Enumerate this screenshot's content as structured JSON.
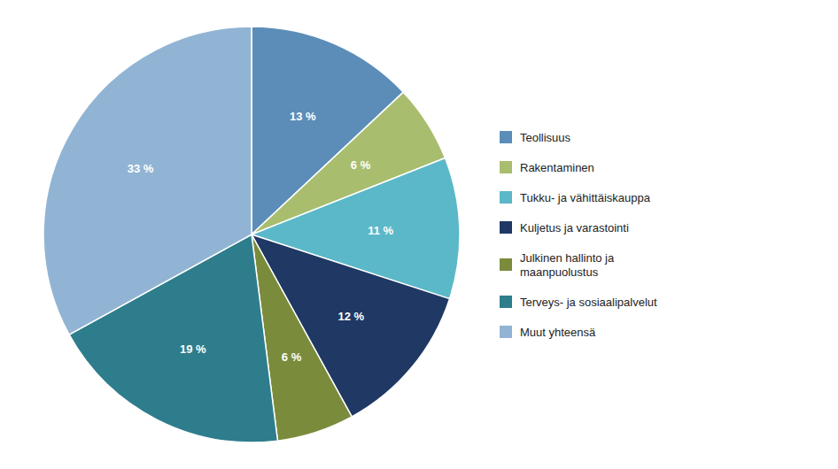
{
  "chart_data": {
    "type": "pie",
    "categories": [
      "Teollisuus",
      "Rakentaminen",
      "Tukku- ja vähittäiskauppa",
      "Kuljetus ja varastointi",
      "Julkinen hallinto ja\nmaanpuolustus",
      "Terveys- ja sosiaalipalvelut",
      "Muut yhteensä"
    ],
    "values": [
      13,
      6,
      11,
      12,
      6,
      19,
      33
    ],
    "value_labels": [
      "13 %",
      "6 %",
      "11 %",
      "12 %",
      "6 %",
      "19 %",
      "33 %"
    ],
    "colors": [
      "#5B8DB8",
      "#A8BE6E",
      "#5BB8C8",
      "#1F3864",
      "#7A8C3C",
      "#2E7D8C",
      "#92B4D4"
    ],
    "data_labels": true,
    "legend": "right"
  }
}
